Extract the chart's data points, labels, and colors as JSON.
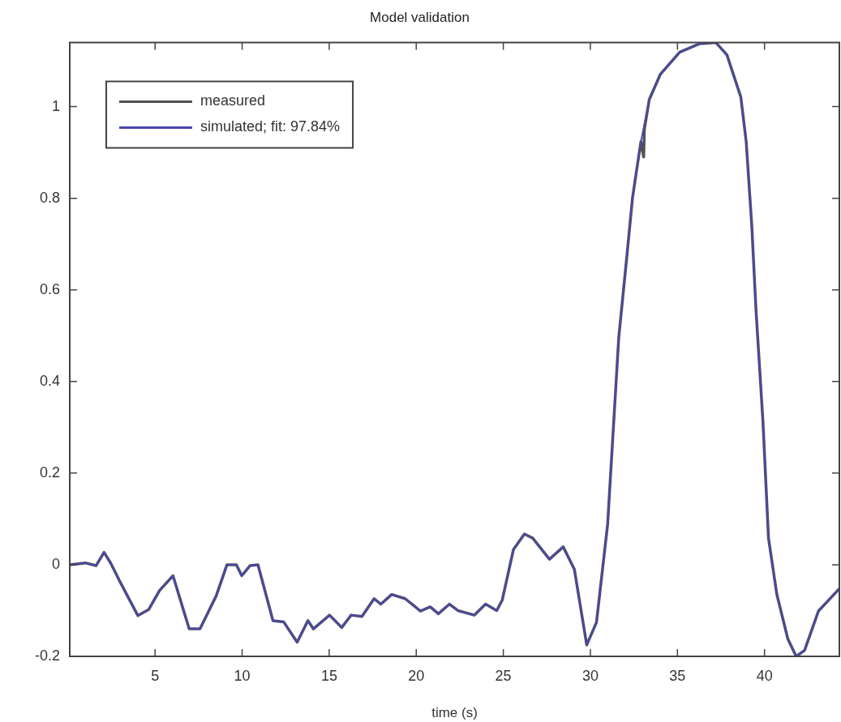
{
  "chart_data": {
    "type": "line",
    "title": "Model validation",
    "xlabel": "time (s)",
    "xlim": [
      0.1,
      44.3
    ],
    "ylim": [
      -0.2,
      1.14
    ],
    "xticks": [
      5,
      10,
      15,
      20,
      25,
      30,
      35,
      40
    ],
    "yticks": [
      -0.2,
      0,
      0.2,
      0.4,
      0.6,
      0.8,
      1
    ],
    "legend": "top left",
    "marker": "none",
    "line_style": "solid",
    "series": [
      {
        "name": "measured",
        "color": "#505050",
        "x": [
          0.1,
          0.99,
          1.61,
          2.07,
          2.46,
          2.93,
          4.01,
          4.63,
          5.26,
          6.03,
          6.96,
          7.58,
          8.51,
          9.13,
          9.67,
          9.98,
          10.45,
          10.91,
          11.77,
          12.39,
          13.16,
          13.78,
          14.09,
          15.02,
          15.72,
          16.26,
          16.88,
          17.58,
          17.97,
          18.59,
          19.36,
          20.24,
          20.8,
          21.27,
          21.91,
          22.39,
          23.34,
          23.98,
          24.62,
          24.94,
          25.58,
          26.21,
          26.69,
          27.65,
          28.44,
          29.08,
          29.79,
          30.35,
          30.99,
          31.23,
          31.63,
          32.11,
          32.42,
          32.9,
          33.06,
          33.1,
          33.38,
          34.01,
          35.13,
          36.25,
          37.2,
          37.84,
          38.64,
          38.95,
          39.27,
          39.51,
          39.91,
          40.23,
          40.71,
          41.34,
          41.82,
          42.3,
          43.1,
          44.3
        ],
        "values": [
          0,
          0.004,
          -0.002,
          0.027,
          0.003,
          -0.033,
          -0.111,
          -0.098,
          -0.056,
          -0.024,
          -0.14,
          -0.14,
          -0.068,
          0,
          0,
          -0.024,
          -0.002,
          0,
          -0.122,
          -0.125,
          -0.169,
          -0.122,
          -0.14,
          -0.11,
          -0.137,
          -0.11,
          -0.113,
          -0.074,
          -0.086,
          -0.065,
          -0.074,
          -0.101,
          -0.092,
          -0.107,
          -0.086,
          -0.1,
          -0.11,
          -0.086,
          -0.1,
          -0.077,
          0.033,
          0.067,
          0.058,
          0.012,
          0.039,
          -0.01,
          -0.175,
          -0.126,
          0.088,
          0.241,
          0.496,
          0.679,
          0.801,
          0.923,
          0.89,
          0.95,
          1.015,
          1.07,
          1.119,
          1.137,
          1.14,
          1.113,
          1.021,
          0.923,
          0.74,
          0.557,
          0.313,
          0.058,
          -0.065,
          -0.162,
          -0.2,
          -0.187,
          -0.101,
          -0.052
        ]
      },
      {
        "name": "simulated; fit: 97.84%",
        "color": "#4848b0",
        "x": [
          0.1,
          0.99,
          1.61,
          2.07,
          2.46,
          2.93,
          4.01,
          4.63,
          5.26,
          6.03,
          6.96,
          7.58,
          8.51,
          9.13,
          9.67,
          9.98,
          10.45,
          10.91,
          11.77,
          12.39,
          13.16,
          13.78,
          14.09,
          15.02,
          15.72,
          16.26,
          16.88,
          17.58,
          17.97,
          18.59,
          19.36,
          20.24,
          20.8,
          21.27,
          21.91,
          22.39,
          23.34,
          23.98,
          24.62,
          24.94,
          25.58,
          26.21,
          26.69,
          27.65,
          28.44,
          29.08,
          29.79,
          30.35,
          30.99,
          31.23,
          31.63,
          32.11,
          32.42,
          32.9,
          33.38,
          34.01,
          35.13,
          36.25,
          37.2,
          37.84,
          38.64,
          38.95,
          39.27,
          39.51,
          39.91,
          40.23,
          40.71,
          41.34,
          41.82,
          42.3,
          43.1,
          44.3
        ],
        "values": [
          0,
          0.004,
          -0.002,
          0.027,
          0.003,
          -0.033,
          -0.111,
          -0.098,
          -0.056,
          -0.024,
          -0.14,
          -0.14,
          -0.068,
          0,
          0,
          -0.024,
          -0.002,
          0,
          -0.122,
          -0.125,
          -0.169,
          -0.122,
          -0.14,
          -0.11,
          -0.137,
          -0.11,
          -0.113,
          -0.074,
          -0.086,
          -0.065,
          -0.074,
          -0.101,
          -0.092,
          -0.107,
          -0.086,
          -0.1,
          -0.11,
          -0.086,
          -0.1,
          -0.077,
          0.033,
          0.067,
          0.058,
          0.012,
          0.039,
          -0.01,
          -0.175,
          -0.126,
          0.088,
          0.241,
          0.496,
          0.679,
          0.801,
          0.923,
          1.015,
          1.07,
          1.119,
          1.137,
          1.14,
          1.113,
          1.021,
          0.923,
          0.74,
          0.557,
          0.313,
          0.058,
          -0.065,
          -0.162,
          -0.2,
          -0.187,
          -0.101,
          -0.052
        ]
      }
    ]
  }
}
